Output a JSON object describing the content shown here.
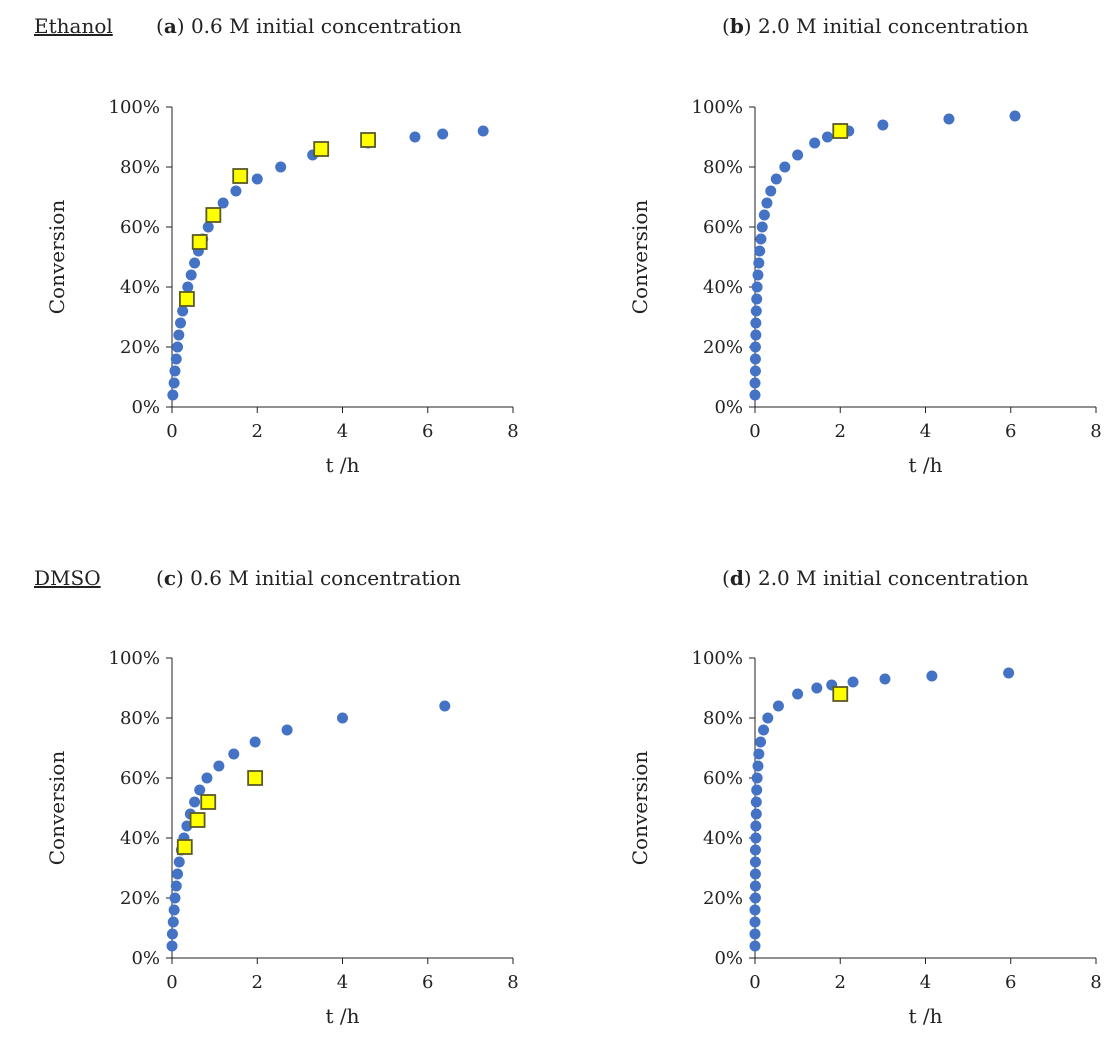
{
  "section_labels": {
    "top": "Ethanol",
    "bottom": "DMSO"
  },
  "colors": {
    "model_points": "#4472C4",
    "experimental_marker_fill": "#FFFF00",
    "experimental_marker_stroke": "#5A5A28",
    "axis": "#222222"
  },
  "chart_data": [
    {
      "type": "scatter",
      "panel": "(a)",
      "title": "0.6 M initial concentration",
      "xlabel": "t /h",
      "ylabel": "Conversion",
      "xlim": [
        0,
        8
      ],
      "ylim": [
        0,
        100
      ],
      "xticks": [
        "0",
        "2",
        "4",
        "6",
        "8"
      ],
      "yticks": [
        "0%",
        "20%",
        "40%",
        "60%",
        "80%",
        "100%"
      ],
      "grid": false,
      "model_points": [
        [
          0.02,
          4
        ],
        [
          0.05,
          8
        ],
        [
          0.07,
          12
        ],
        [
          0.1,
          16
        ],
        [
          0.13,
          20
        ],
        [
          0.16,
          24
        ],
        [
          0.2,
          28
        ],
        [
          0.25,
          32
        ],
        [
          0.31,
          36
        ],
        [
          0.37,
          40
        ],
        [
          0.45,
          44
        ],
        [
          0.53,
          48
        ],
        [
          0.62,
          52
        ],
        [
          0.72,
          56
        ],
        [
          0.85,
          60
        ],
        [
          1.0,
          64
        ],
        [
          1.2,
          68
        ],
        [
          1.5,
          72
        ],
        [
          2.0,
          76
        ],
        [
          2.55,
          80
        ],
        [
          3.3,
          84
        ],
        [
          4.6,
          88
        ],
        [
          5.7,
          90
        ],
        [
          6.35,
          91
        ],
        [
          7.3,
          92
        ]
      ],
      "experimental_points": [
        [
          0.35,
          36
        ],
        [
          0.65,
          55
        ],
        [
          0.97,
          64
        ],
        [
          1.6,
          77
        ],
        [
          3.5,
          86
        ],
        [
          4.6,
          89
        ]
      ]
    },
    {
      "type": "scatter",
      "panel": "(b)",
      "title": "2.0 M initial concentration",
      "xlabel": "t /h",
      "ylabel": "Conversion",
      "xlim": [
        0,
        8
      ],
      "ylim": [
        0,
        100
      ],
      "xticks": [
        "0",
        "2",
        "4",
        "6",
        "8"
      ],
      "yticks": [
        "0%",
        "20%",
        "40%",
        "60%",
        "80%",
        "100%"
      ],
      "grid": false,
      "model_points": [
        [
          0.0,
          4
        ],
        [
          0.0,
          8
        ],
        [
          0.01,
          12
        ],
        [
          0.01,
          16
        ],
        [
          0.01,
          20
        ],
        [
          0.02,
          24
        ],
        [
          0.02,
          28
        ],
        [
          0.03,
          32
        ],
        [
          0.04,
          36
        ],
        [
          0.05,
          40
        ],
        [
          0.07,
          44
        ],
        [
          0.09,
          48
        ],
        [
          0.11,
          52
        ],
        [
          0.14,
          56
        ],
        [
          0.17,
          60
        ],
        [
          0.22,
          64
        ],
        [
          0.28,
          68
        ],
        [
          0.37,
          72
        ],
        [
          0.5,
          76
        ],
        [
          0.7,
          80
        ],
        [
          1.0,
          84
        ],
        [
          1.4,
          88
        ],
        [
          1.7,
          90
        ],
        [
          2.2,
          92
        ],
        [
          3.0,
          94
        ],
        [
          4.55,
          96
        ],
        [
          6.1,
          97
        ]
      ],
      "experimental_points": [
        [
          2.0,
          92
        ]
      ]
    },
    {
      "type": "scatter",
      "panel": "(c)",
      "title": "0.6 M initial concentration",
      "xlabel": "t /h",
      "ylabel": "Conversion",
      "xlim": [
        0,
        8
      ],
      "ylim": [
        0,
        100
      ],
      "xticks": [
        "0",
        "2",
        "4",
        "6",
        "8"
      ],
      "yticks": [
        "0%",
        "20%",
        "40%",
        "60%",
        "80%",
        "100%"
      ],
      "grid": false,
      "model_points": [
        [
          0.0,
          4
        ],
        [
          0.01,
          8
        ],
        [
          0.03,
          12
        ],
        [
          0.05,
          16
        ],
        [
          0.07,
          20
        ],
        [
          0.1,
          24
        ],
        [
          0.13,
          28
        ],
        [
          0.17,
          32
        ],
        [
          0.22,
          36
        ],
        [
          0.28,
          40
        ],
        [
          0.35,
          44
        ],
        [
          0.43,
          48
        ],
        [
          0.53,
          52
        ],
        [
          0.65,
          56
        ],
        [
          0.82,
          60
        ],
        [
          1.1,
          64
        ],
        [
          1.45,
          68
        ],
        [
          1.95,
          72
        ],
        [
          2.7,
          76
        ],
        [
          4.0,
          80
        ],
        [
          6.4,
          84
        ]
      ],
      "experimental_points": [
        [
          0.3,
          37
        ],
        [
          0.6,
          46
        ],
        [
          0.85,
          52
        ],
        [
          1.95,
          60
        ]
      ]
    },
    {
      "type": "scatter",
      "panel": "(d)",
      "title": "2.0 M initial concentration",
      "xlabel": "t /h",
      "ylabel": "Conversion",
      "xlim": [
        0,
        8
      ],
      "ylim": [
        0,
        100
      ],
      "xticks": [
        "0",
        "2",
        "4",
        "6",
        "8"
      ],
      "yticks": [
        "0%",
        "20%",
        "40%",
        "60%",
        "80%",
        "100%"
      ],
      "grid": false,
      "model_points": [
        [
          0.0,
          4
        ],
        [
          0.0,
          8
        ],
        [
          0.0,
          12
        ],
        [
          0.0,
          16
        ],
        [
          0.01,
          20
        ],
        [
          0.01,
          24
        ],
        [
          0.01,
          28
        ],
        [
          0.01,
          32
        ],
        [
          0.01,
          36
        ],
        [
          0.02,
          40
        ],
        [
          0.02,
          44
        ],
        [
          0.03,
          48
        ],
        [
          0.03,
          52
        ],
        [
          0.04,
          56
        ],
        [
          0.05,
          60
        ],
        [
          0.07,
          64
        ],
        [
          0.09,
          68
        ],
        [
          0.13,
          72
        ],
        [
          0.2,
          76
        ],
        [
          0.3,
          80
        ],
        [
          0.55,
          84
        ],
        [
          1.0,
          88
        ],
        [
          1.45,
          90
        ],
        [
          1.8,
          91
        ],
        [
          2.3,
          92
        ],
        [
          3.05,
          93
        ],
        [
          4.15,
          94
        ],
        [
          5.95,
          95
        ]
      ],
      "experimental_points": [
        [
          2.0,
          88
        ]
      ]
    }
  ]
}
